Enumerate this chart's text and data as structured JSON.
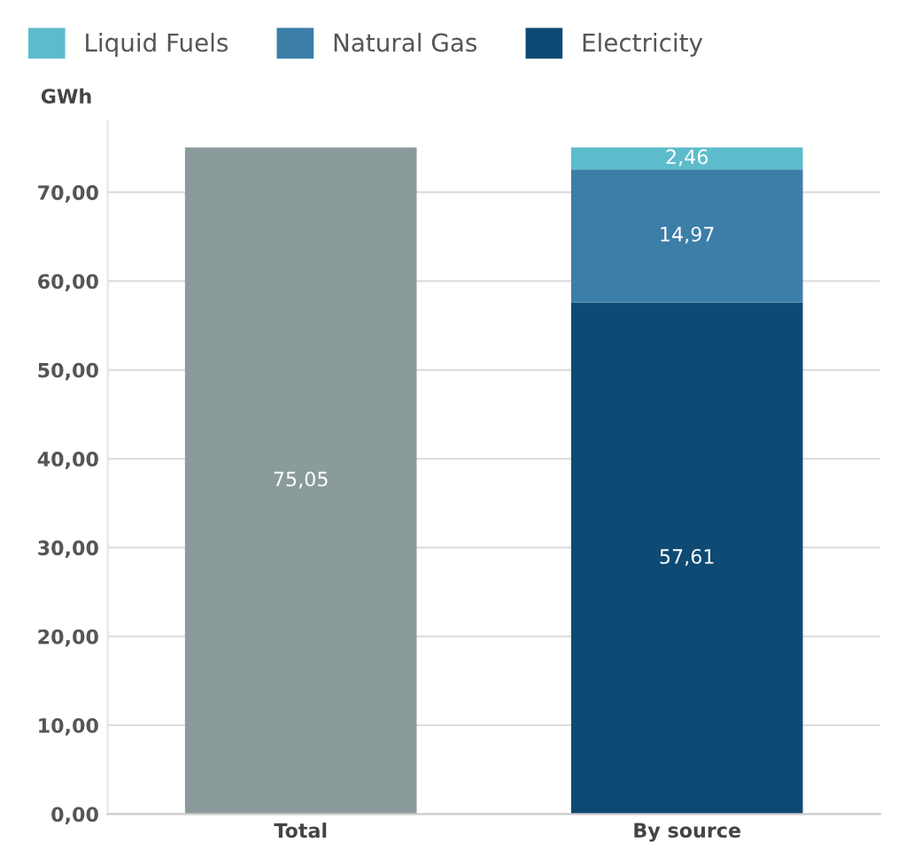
{
  "chart_data": {
    "type": "bar",
    "stacked": true,
    "ylabel": "GWh",
    "categories": [
      "Total",
      "By source"
    ],
    "series": [
      {
        "color": "#8b9b9c",
        "values": [
          75.05,
          null
        ],
        "value_labels": [
          "75,05",
          null
        ]
      },
      {
        "name": "Electricity",
        "color": "#0e4a73",
        "values": [
          null,
          57.61
        ],
        "value_labels": [
          null,
          "57,61"
        ]
      },
      {
        "name": "Natural Gas",
        "color": "#3b7ea8",
        "values": [
          null,
          14.97
        ],
        "value_labels": [
          null,
          "14,97"
        ]
      },
      {
        "name": "Liquid Fuels",
        "color": "#5cbccc",
        "values": [
          null,
          2.46
        ],
        "value_labels": [
          null,
          "2,46"
        ]
      }
    ],
    "ylim": [
      0,
      78
    ],
    "yticks": [
      {
        "value": 0,
        "label": "0,00"
      },
      {
        "value": 10,
        "label": "10,00"
      },
      {
        "value": 20,
        "label": "20,00"
      },
      {
        "value": 30,
        "label": "30,00"
      },
      {
        "value": 40,
        "label": "40,00"
      },
      {
        "value": 50,
        "label": "50,00"
      },
      {
        "value": 60,
        "label": "60,00"
      },
      {
        "value": 70,
        "label": "70,00"
      }
    ],
    "grid": "y",
    "legend": "top left"
  }
}
